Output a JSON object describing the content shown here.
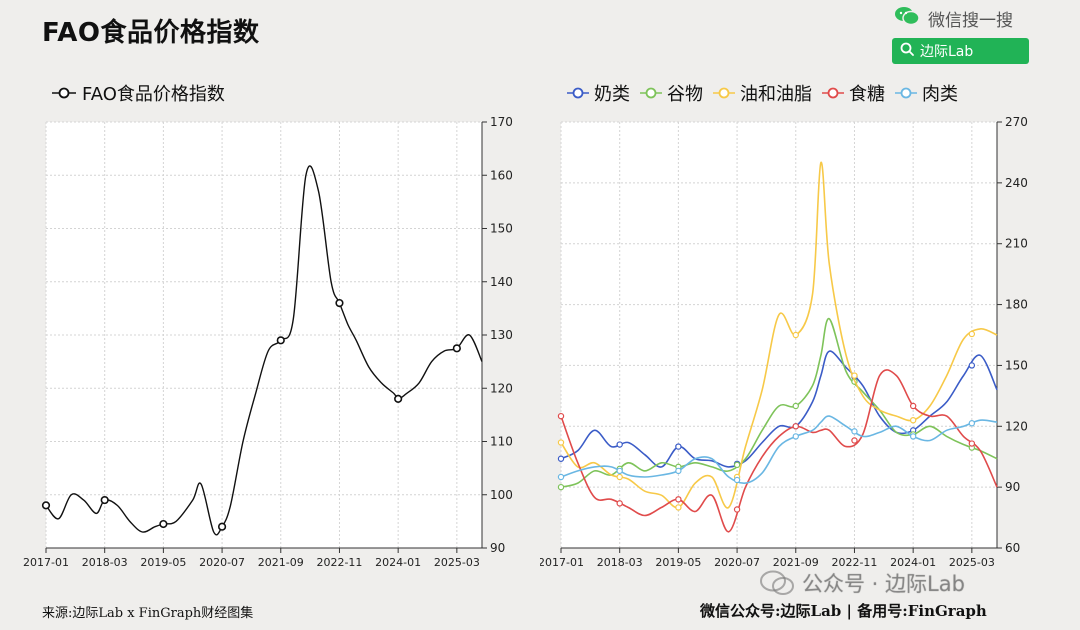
{
  "header": {
    "title": "FAO食品价格指数",
    "search_hint": "微信搜一搜",
    "search_button": "边际Lab",
    "search_icon": "search-icon",
    "wechat_icon": "wechat-icon"
  },
  "footer": {
    "source": "来源:边际Lab x FinGraph财经图集",
    "account": "微信公众号:边际Lab  |  备用号:FinGraph",
    "watermark": "公众号 · 边际Lab"
  },
  "colors": {
    "fao": "#111111",
    "dairy": "#3b5cc7",
    "cereals": "#7ec35a",
    "oils": "#f7c948",
    "sugar": "#e04b4b",
    "meat": "#6ab7e3",
    "brand_green": "#21b356"
  },
  "chart_data": [
    {
      "type": "line",
      "title": "",
      "x_ticks": [
        "2017-01",
        "2018-03",
        "2019-05",
        "2020-07",
        "2021-09",
        "2022-11",
        "2024-01",
        "2025-03"
      ],
      "xlim": [
        "2017-01",
        "2025-09"
      ],
      "y_ticks": [
        90,
        100,
        110,
        120,
        130,
        140,
        150,
        160,
        170
      ],
      "ylim": [
        90,
        170
      ],
      "y_axis_side": "right",
      "grid": true,
      "legend_position": "top-left",
      "series": [
        {
          "name": "FAO食品价格指数",
          "color": "#111111",
          "x": [
            "2017-01",
            "2017-04",
            "2017-07",
            "2017-10",
            "2018-01",
            "2018-03",
            "2018-06",
            "2018-09",
            "2018-12",
            "2019-03",
            "2019-05",
            "2019-08",
            "2019-12",
            "2020-02",
            "2020-05",
            "2020-07",
            "2020-09",
            "2020-12",
            "2021-03",
            "2021-06",
            "2021-09",
            "2021-12",
            "2022-03",
            "2022-06",
            "2022-09",
            "2022-11",
            "2023-01",
            "2023-03",
            "2023-06",
            "2023-09",
            "2023-12",
            "2024-01",
            "2024-03",
            "2024-06",
            "2024-09",
            "2024-12",
            "2025-03",
            "2025-06",
            "2025-09"
          ],
          "values": [
            98,
            95.5,
            100,
            99,
            96.5,
            99,
            98,
            95,
            93,
            94,
            94.5,
            95,
            99,
            102,
            93,
            94,
            98,
            110,
            119,
            127,
            129,
            133,
            160,
            157,
            140,
            136,
            132,
            129,
            124,
            121,
            119,
            118,
            119,
            121,
            125,
            127,
            127.5,
            130,
            125
          ],
          "markers": [
            "2017-01",
            "2018-03",
            "2019-05",
            "2020-07",
            "2021-09",
            "2022-11",
            "2024-01",
            "2025-03"
          ]
        }
      ]
    },
    {
      "type": "line",
      "title": "",
      "x_ticks": [
        "2017-01",
        "2018-03",
        "2019-05",
        "2020-07",
        "2021-09",
        "2022-11",
        "2024-01",
        "2025-03"
      ],
      "xlim": [
        "2017-01",
        "2025-09"
      ],
      "y_ticks": [
        60,
        90,
        120,
        150,
        180,
        210,
        240,
        270
      ],
      "ylim": [
        60,
        270
      ],
      "y_axis_side": "right",
      "grid": true,
      "legend_position": "top",
      "x": [
        "2017-01",
        "2017-05",
        "2017-09",
        "2018-01",
        "2018-05",
        "2018-09",
        "2019-01",
        "2019-05",
        "2019-09",
        "2020-01",
        "2020-05",
        "2020-09",
        "2021-01",
        "2021-05",
        "2021-09",
        "2022-01",
        "2022-03",
        "2022-05",
        "2022-09",
        "2023-01",
        "2023-05",
        "2023-09",
        "2024-01",
        "2024-05",
        "2024-09",
        "2025-01",
        "2025-05",
        "2025-09"
      ],
      "series": [
        {
          "name": "奶类",
          "color": "#3b5cc7",
          "values": [
            104,
            108,
            118,
            110,
            112,
            106,
            100,
            110,
            104,
            103,
            100,
            103,
            112,
            120,
            120,
            132,
            145,
            157,
            149,
            140,
            125,
            117,
            118,
            125,
            132,
            145,
            155,
            138
          ]
        },
        {
          "name": "谷物",
          "color": "#7ec35a",
          "values": [
            90,
            92,
            98,
            96,
            102,
            98,
            102,
            100,
            102,
            100,
            98,
            104,
            118,
            130,
            130,
            140,
            155,
            173,
            147,
            137,
            128,
            117,
            116,
            120,
            115,
            111,
            108,
            104
          ]
        },
        {
          "name": "油和油脂",
          "color": "#f7c948",
          "values": [
            112,
            100,
            102,
            96,
            94,
            88,
            86,
            80,
            92,
            95,
            80,
            110,
            138,
            175,
            165,
            185,
            250,
            200,
            155,
            135,
            128,
            125,
            123,
            130,
            145,
            163,
            168,
            165
          ]
        },
        {
          "name": "食糖",
          "color": "#e04b4b",
          "values": [
            125,
            102,
            85,
            84,
            80,
            76,
            80,
            84,
            78,
            86,
            68,
            90,
            105,
            115,
            120,
            117,
            118,
            118,
            110,
            116,
            145,
            145,
            130,
            125,
            125,
            115,
            108,
            90
          ]
        },
        {
          "name": "肉类",
          "color": "#6ab7e3",
          "values": [
            95,
            98,
            100,
            100,
            96,
            95,
            96,
            98,
            104,
            104,
            95,
            92,
            97,
            110,
            115,
            118,
            122,
            125,
            120,
            115,
            117,
            120,
            115,
            113,
            118,
            120,
            123,
            122
          ]
        }
      ]
    }
  ]
}
